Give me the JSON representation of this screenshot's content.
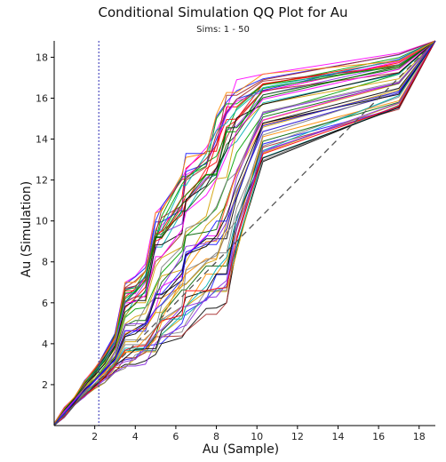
{
  "chart_data": {
    "type": "line",
    "title": "Conditional Simulation QQ Plot for Au",
    "subtitle": "Sims: 1 - 50",
    "xlabel": "Au (Sample)",
    "ylabel": "Au (Simulation)",
    "xlim": [
      0,
      18.8
    ],
    "ylim": [
      0,
      18.8
    ],
    "x_ticks": [
      2,
      4,
      6,
      8,
      10,
      12,
      14,
      16,
      18
    ],
    "y_ticks": [
      2,
      4,
      6,
      8,
      10,
      12,
      14,
      16,
      18
    ],
    "reference_line": {
      "type": "y=x",
      "style": "dashed",
      "color": "#555555"
    },
    "vertical_line": {
      "x": 2.2,
      "style": "dotted",
      "color": "#2b2bb5"
    },
    "x_quantiles": [
      0,
      0.5,
      1.0,
      1.5,
      2.0,
      2.5,
      3.0,
      3.5,
      4.0,
      4.5,
      5.0,
      5.3,
      6.3,
      6.5,
      7.5,
      8.0,
      8.5,
      9.0,
      10.3,
      17.0,
      18.8
    ],
    "series_count": 50,
    "series_envelope": {
      "upper": [
        0.1,
        0.9,
        1.4,
        2.2,
        2.8,
        3.6,
        4.5,
        7.0,
        7.3,
        7.9,
        10.4,
        10.7,
        12.4,
        13.3,
        14.0,
        15.2,
        16.4,
        16.9,
        17.4,
        18.2,
        18.8
      ],
      "lower": [
        0.0,
        0.4,
        1.0,
        1.4,
        1.8,
        2.1,
        2.6,
        2.8,
        2.9,
        3.0,
        3.3,
        3.6,
        4.3,
        4.6,
        5.4,
        5.4,
        6.0,
        8.4,
        12.9,
        15.4,
        18.8
      ]
    },
    "grid": false,
    "legend": "none",
    "colors": [
      "#000000",
      "#1a1aff",
      "#00a000",
      "#ff0000",
      "#ff00ff",
      "#00b0b0",
      "#d0a000",
      "#808080",
      "#8a2be2",
      "#a52a2a",
      "#006400",
      "#ff8c00"
    ]
  }
}
